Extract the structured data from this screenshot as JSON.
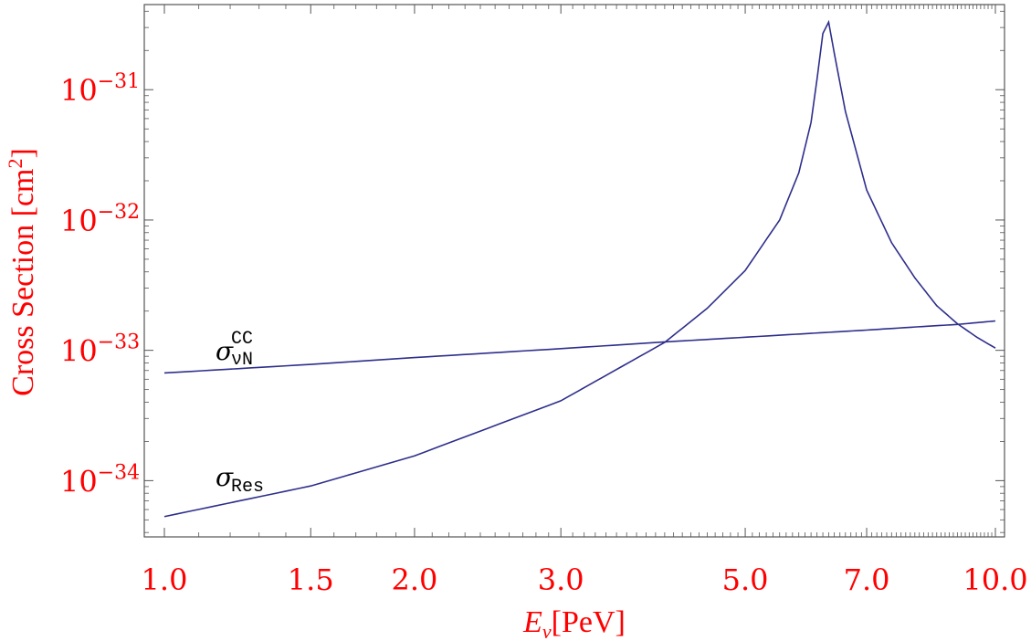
{
  "chart_data": {
    "type": "line",
    "xlabel": {
      "base": "E",
      "sub": "ν",
      "unit": "[PeV]"
    },
    "ylabel": {
      "base": "Cross Section [cm",
      "sup": "2",
      "end": "]"
    },
    "x_scale": "log",
    "y_scale": "log",
    "xlim": [
      1.0,
      10.0
    ],
    "ylim": [
      3.7e-35,
      4.5e-31
    ],
    "x_ticks": [
      {
        "value": 1.0,
        "label": "1.0"
      },
      {
        "value": 1.5,
        "label": "1.5"
      },
      {
        "value": 2.0,
        "label": "2.0"
      },
      {
        "value": 3.0,
        "label": "3.0"
      },
      {
        "value": 5.0,
        "label": "5.0"
      },
      {
        "value": 7.0,
        "label": "7.0"
      },
      {
        "value": 10.0,
        "label": "10.0"
      }
    ],
    "y_ticks": [
      {
        "value": 1e-34,
        "base": "10",
        "exp": "−34"
      },
      {
        "value": 1e-33,
        "base": "10",
        "exp": "−33"
      },
      {
        "value": 1e-32,
        "base": "10",
        "exp": "−32"
      },
      {
        "value": 1e-31,
        "base": "10",
        "exp": "−31"
      }
    ],
    "colors": {
      "axis_text": "#ff0000",
      "line": "#2e2e8c",
      "frame": "#555555"
    },
    "series": [
      {
        "name": "σ_νN^CC",
        "label_main": "σ",
        "label_sup": "CC",
        "label_sub": "νN",
        "x": [
          1.0,
          1.5,
          2.0,
          3.0,
          4.0,
          5.0,
          6.0,
          7.0,
          8.0,
          9.0,
          10.0
        ],
        "y": [
          6.7e-34,
          7.8e-34,
          8.8e-34,
          1.03e-33,
          1.16e-33,
          1.26e-33,
          1.35e-33,
          1.43e-33,
          1.51e-33,
          1.58e-33,
          1.68e-33
        ]
      },
      {
        "name": "σ_Res",
        "label_main": "σ",
        "label_sub": "Res",
        "x": [
          1.0,
          1.5,
          2.0,
          3.0,
          4.0,
          4.5,
          5.0,
          5.5,
          5.8,
          6.0,
          6.1,
          6.2,
          6.3,
          6.4,
          6.6,
          7.0,
          7.5,
          8.0,
          8.5,
          9.0,
          9.5,
          10.0
        ],
        "y": [
          5.3e-35,
          9.1e-35,
          1.55e-34,
          4.1e-34,
          1.15e-33,
          2.1e-33,
          4.1e-33,
          1e-32,
          2.3e-32,
          5.6e-32,
          1.2e-31,
          2.7e-31,
          3.3e-31,
          1.9e-31,
          6.8e-32,
          1.7e-32,
          6.7e-33,
          3.6e-33,
          2.2e-33,
          1.6e-33,
          1.26e-33,
          1.04e-33
        ]
      }
    ]
  }
}
